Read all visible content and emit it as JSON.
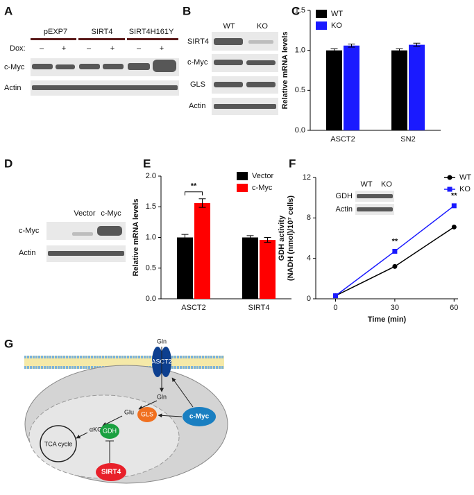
{
  "panel_labels": [
    "A",
    "B",
    "C",
    "D",
    "E",
    "F",
    "G"
  ],
  "blot_a": {
    "groups": [
      "pEXP7",
      "SIRT4",
      "SIRT4H161Y"
    ],
    "dox_label": "Dox:",
    "dox": [
      "–",
      "+",
      "–",
      "+",
      "–",
      "+"
    ],
    "rows": [
      "c-Myc",
      "Actin"
    ]
  },
  "blot_b": {
    "lanes": [
      "WT",
      "KO"
    ],
    "rows": [
      "SIRT4",
      "c-Myc",
      "GLS",
      "Actin"
    ]
  },
  "blot_d": {
    "lanes": [
      "Vector",
      "c-Myc"
    ],
    "rows": [
      "c-Myc",
      "Actin"
    ]
  },
  "chart_data": [
    {
      "type": "bar",
      "ylabel": "Relative mRNA levels",
      "categories": [
        "ASCT2",
        "SN2"
      ],
      "series": [
        {
          "name": "WT",
          "color": "#000000",
          "values": [
            1.0,
            1.0
          ],
          "errors": [
            0.02,
            0.02
          ]
        },
        {
          "name": "KO",
          "color": "#1a1aff",
          "values": [
            1.06,
            1.07
          ],
          "errors": [
            0.02,
            0.02
          ]
        }
      ],
      "ylim": [
        0,
        1.5
      ],
      "yticks": [
        {
          "value": 0,
          "label": "0.0"
        },
        {
          "value": 0.5,
          "label": "0.5"
        },
        {
          "value": 1,
          "label": "1.0"
        },
        {
          "value": 1.5,
          "label": "1.5"
        }
      ],
      "legend": "upper left"
    },
    {
      "type": "bar",
      "ylabel": "Relative mRNA levels",
      "categories": [
        "ASCT2",
        "SIRT4"
      ],
      "series": [
        {
          "name": "Vector",
          "color": "#000000",
          "values": [
            1.0,
            1.0
          ],
          "errors": [
            0.05,
            0.03
          ]
        },
        {
          "name": "c-Myc",
          "color": "#ff0000",
          "values": [
            1.56,
            0.96
          ],
          "errors": [
            0.07,
            0.04
          ]
        }
      ],
      "ylim": [
        0,
        2
      ],
      "yticks": [
        {
          "value": 0,
          "label": "0.0"
        },
        {
          "value": 0.5,
          "label": "0.5"
        },
        {
          "value": 1,
          "label": "1.0"
        },
        {
          "value": 1.5,
          "label": "1.5"
        },
        {
          "value": 2,
          "label": "2.0"
        }
      ],
      "annotation": "**",
      "legend": "upper right"
    },
    {
      "type": "line",
      "ylabel": [
        "GDH activity",
        "(NADH (nmol)/10⁷ cells)"
      ],
      "xlabel": "Time (min)",
      "x": [
        0,
        30,
        60
      ],
      "series": [
        {
          "name": "WT",
          "color": "#000000",
          "marker": "circle",
          "values": [
            0.3,
            3.2,
            7.1
          ]
        },
        {
          "name": "KO",
          "color": "#1a1aff",
          "marker": "square",
          "values": [
            0.3,
            4.7,
            9.2
          ]
        }
      ],
      "xlim": [
        -10,
        62
      ],
      "xticks": [
        0,
        30,
        60
      ],
      "ylim": [
        0,
        12
      ],
      "yticks": [
        0,
        4,
        8,
        12
      ],
      "annotations": [
        "**",
        "**"
      ],
      "legend": "upper right",
      "inset": {
        "lanes": [
          "WT",
          "KO"
        ],
        "rows": [
          "GDH",
          "Actin"
        ]
      }
    }
  ],
  "diagram": {
    "gln_out": "Gln",
    "transporter": "ASCT2",
    "gln_in": "Gln",
    "glu": "Glu",
    "akg": "αKG",
    "gls": "GLS",
    "gdh": "GDH",
    "tca": "TCA cycle",
    "sirt4": "SIRT4",
    "myc": "c-Myc"
  }
}
